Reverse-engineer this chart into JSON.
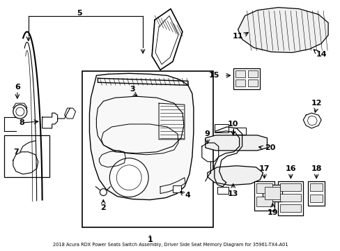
{
  "title": "2018 Acura RDX Power Seats Switch Assembly, Driver Side Seat Memory Diagram for 35961-TX4-A01",
  "bg": "#ffffff",
  "lc": "#000000",
  "figsize": [
    4.89,
    3.6
  ],
  "dpi": 100
}
